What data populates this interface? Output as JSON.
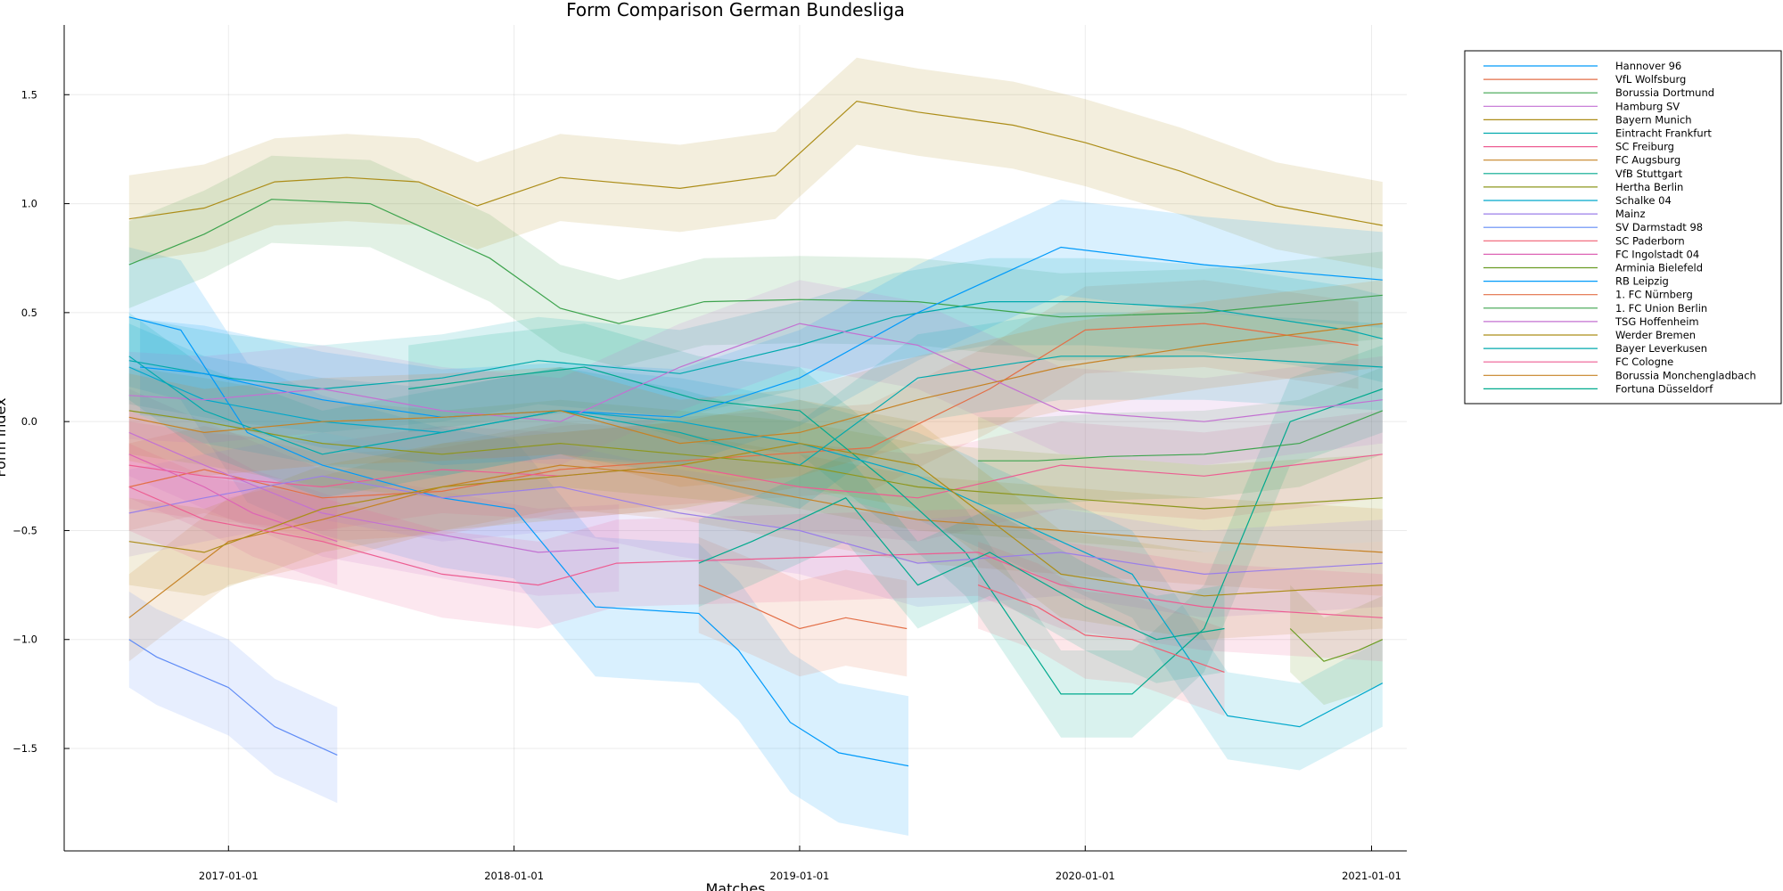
{
  "chart_data": {
    "type": "line",
    "title": "Form Comparison German Bundesliga",
    "xlabel": "Matches",
    "ylabel": "Form index",
    "x_ticks": [
      "2017-01-01",
      "2018-01-01",
      "2019-01-01",
      "2020-01-01",
      "2021-01-01"
    ],
    "y_ticks": [
      -1.5,
      -1.0,
      -0.5,
      0.0,
      0.5,
      1.0,
      1.5
    ],
    "y_tick_labels": [
      "−1.5",
      "−1.0",
      "−0.5",
      "0.0",
      "0.5",
      "1.0",
      "1.5"
    ],
    "xlim": [
      "2016-06-05",
      "2021-02-15"
    ],
    "ylim": [
      -1.97,
      1.82
    ],
    "grid": true,
    "legend_position": "outer-top-right",
    "band": "shaded uncertainty band around each series line",
    "series": [
      {
        "name": "Hannover 96",
        "color": "#009AFA",
        "band": 0.32,
        "x": [
          "2016-08-27",
          "2016-11-01",
          "2017-01-25",
          "2017-05-01",
          "2017-10-01",
          "2018-01-01",
          "2018-04-15",
          "2018-08-25",
          "2018-10-15",
          "2018-12-20",
          "2019-02-20",
          "2019-05-20"
        ],
        "y": [
          0.48,
          0.42,
          -0.05,
          -0.2,
          -0.35,
          -0.4,
          -0.85,
          -0.88,
          -1.05,
          -1.38,
          -1.52,
          -1.58
        ]
      },
      {
        "name": "VfL Wolfsburg",
        "color": "#E36F47",
        "band": 0.2,
        "x": [
          "2016-08-27",
          "2016-12-01",
          "2017-05-01",
          "2017-10-01",
          "2018-03-01",
          "2018-08-01",
          "2018-12-01",
          "2019-04-01",
          "2019-09-01",
          "2020-01-01",
          "2020-06-01",
          "2020-12-15"
        ],
        "y": [
          -0.3,
          -0.22,
          -0.35,
          -0.32,
          -0.22,
          -0.18,
          -0.15,
          -0.12,
          0.15,
          0.42,
          0.45,
          0.35
        ]
      },
      {
        "name": "Borussia Dortmund",
        "color": "#3EA44E",
        "band": 0.2,
        "x": [
          "2016-08-27",
          "2016-12-01",
          "2017-02-25",
          "2017-07-01",
          "2017-12-01",
          "2018-03-01",
          "2018-05-15",
          "2018-09-01",
          "2019-01-01",
          "2019-06-01",
          "2019-12-01",
          "2020-06-01",
          "2021-01-15"
        ],
        "y": [
          0.72,
          0.86,
          1.02,
          1.0,
          0.75,
          0.52,
          0.45,
          0.55,
          0.56,
          0.55,
          0.48,
          0.5,
          0.58
        ]
      },
      {
        "name": "Hamburg SV",
        "color": "#C371D2",
        "band": 0.2,
        "x": [
          "2016-08-27",
          "2016-12-01",
          "2017-05-01",
          "2017-10-01",
          "2018-02-01",
          "2018-05-15"
        ],
        "y": [
          -0.05,
          -0.2,
          -0.42,
          -0.52,
          -0.6,
          -0.58
        ]
      },
      {
        "name": "Bayern Munich",
        "color": "#AC8D18",
        "band": 0.2,
        "x": [
          "2016-08-27",
          "2016-12-01",
          "2017-03-01",
          "2017-06-01",
          "2017-09-01",
          "2017-11-15",
          "2018-03-01",
          "2018-08-01",
          "2018-12-01",
          "2019-03-15",
          "2019-06-01",
          "2019-10-01",
          "2020-01-01",
          "2020-05-01",
          "2020-09-01",
          "2021-01-15"
        ],
        "y": [
          0.93,
          0.98,
          1.1,
          1.12,
          1.1,
          0.99,
          1.12,
          1.07,
          1.13,
          1.47,
          1.42,
          1.36,
          1.28,
          1.15,
          0.99,
          0.9
        ]
      },
      {
        "name": "Eintracht Frankfurt",
        "color": "#00A9AD",
        "band": 0.2,
        "x": [
          "2016-08-27",
          "2017-01-01",
          "2017-05-01",
          "2017-10-01",
          "2018-02-01",
          "2018-08-01",
          "2019-01-01",
          "2019-05-01",
          "2019-09-01",
          "2020-01-01",
          "2020-06-01",
          "2020-12-01",
          "2021-01-15"
        ],
        "y": [
          0.28,
          0.2,
          0.15,
          0.2,
          0.28,
          0.22,
          0.35,
          0.48,
          0.55,
          0.55,
          0.52,
          0.42,
          0.38
        ]
      },
      {
        "name": "SC Freiburg",
        "color": "#ED5D92",
        "band": 0.2,
        "x": [
          "2016-08-27",
          "2016-12-01",
          "2017-05-01",
          "2017-10-01",
          "2018-03-01",
          "2018-08-01",
          "2019-01-01",
          "2019-06-01",
          "2019-12-01",
          "2020-06-01",
          "2021-01-15"
        ],
        "y": [
          -0.2,
          -0.25,
          -0.3,
          -0.22,
          -0.25,
          -0.2,
          -0.3,
          -0.35,
          -0.2,
          -0.25,
          -0.15
        ]
      },
      {
        "name": "FC Augsburg",
        "color": "#C68225",
        "band": 0.2,
        "x": [
          "2016-08-27",
          "2017-01-01",
          "2017-05-01",
          "2017-10-01",
          "2018-03-01",
          "2018-08-01",
          "2019-01-01",
          "2019-06-01",
          "2019-12-01",
          "2020-06-01",
          "2021-01-15"
        ],
        "y": [
          -0.9,
          -0.55,
          -0.45,
          -0.3,
          -0.2,
          -0.25,
          -0.35,
          -0.45,
          -0.5,
          -0.55,
          -0.6
        ]
      },
      {
        "name": "VfB Stuttgart",
        "color": "#00A98D",
        "band": 0.2,
        "x": [
          "2017-08-19",
          "2017-12-01",
          "2018-04-01",
          "2018-08-25",
          "2019-01-01",
          "2019-05-01",
          "2019-08-01",
          "2019-12-01",
          "2020-03-01",
          "2020-06-01",
          "2020-09-19",
          "2021-01-15"
        ],
        "y": [
          0.15,
          0.2,
          0.25,
          0.1,
          0.05,
          -0.3,
          -0.6,
          -1.25,
          -1.25,
          -0.95,
          0.0,
          0.15
        ]
      },
      {
        "name": "Hertha Berlin",
        "color": "#8E971E",
        "band": 0.2,
        "x": [
          "2016-08-27",
          "2016-12-01",
          "2017-05-01",
          "2017-10-01",
          "2018-03-01",
          "2018-08-01",
          "2019-01-01",
          "2019-06-01",
          "2019-12-01",
          "2020-06-01",
          "2021-01-15"
        ],
        "y": [
          0.05,
          0.0,
          -0.1,
          -0.15,
          -0.1,
          -0.15,
          -0.2,
          -0.3,
          -0.35,
          -0.4,
          -0.35
        ]
      },
      {
        "name": "Schalke 04",
        "color": "#00A8CB",
        "band": 0.2,
        "x": [
          "2016-08-27",
          "2016-12-01",
          "2017-05-01",
          "2017-10-01",
          "2018-03-01",
          "2018-08-01",
          "2019-01-01",
          "2019-06-01",
          "2019-12-01",
          "2020-03-01",
          "2020-07-01",
          "2020-10-01",
          "2021-01-15"
        ],
        "y": [
          0.25,
          0.1,
          0.0,
          -0.05,
          0.05,
          0.0,
          -0.1,
          -0.25,
          -0.55,
          -0.7,
          -1.35,
          -1.4,
          -1.2
        ]
      },
      {
        "name": "Mainz",
        "color": "#9B7FE8",
        "band": 0.2,
        "x": [
          "2016-08-27",
          "2016-12-01",
          "2017-05-01",
          "2017-10-01",
          "2018-03-01",
          "2018-08-01",
          "2019-01-01",
          "2019-06-01",
          "2019-12-01",
          "2020-06-01",
          "2021-01-15"
        ],
        "y": [
          -0.42,
          -0.35,
          -0.25,
          -0.35,
          -0.3,
          -0.42,
          -0.5,
          -0.65,
          -0.6,
          -0.7,
          -0.65
        ]
      },
      {
        "name": "SV Darmstadt 98",
        "color": "#608CF6",
        "band": 0.22,
        "x": [
          "2016-08-27",
          "2016-10-01",
          "2017-01-01",
          "2017-03-01",
          "2017-05-20"
        ],
        "y": [
          -1.0,
          -1.08,
          -1.22,
          -1.4,
          -1.53
        ]
      },
      {
        "name": "SC Paderborn",
        "color": "#F05F73",
        "band": 0.2,
        "x": [
          "2019-08-17",
          "2019-11-01",
          "2020-01-01",
          "2020-03-01",
          "2020-06-27"
        ],
        "y": [
          -0.75,
          -0.85,
          -0.98,
          -1.0,
          -1.15
        ]
      },
      {
        "name": "FC Ingolstadt 04",
        "color": "#DD64B5",
        "band": 0.2,
        "x": [
          "2016-08-27",
          "2016-12-01",
          "2017-02-01",
          "2017-05-20"
        ],
        "y": [
          -0.15,
          -0.3,
          -0.42,
          -0.55
        ]
      },
      {
        "name": "Arminia Bielefeld",
        "color": "#6B9D24",
        "band": 0.2,
        "x": [
          "2020-09-19",
          "2020-11-01",
          "2020-12-15",
          "2021-01-15"
        ],
        "y": [
          -0.95,
          -1.1,
          -1.05,
          -1.0
        ]
      },
      {
        "name": "RB Leipzig",
        "color": "#009AFA",
        "band": 0.22,
        "x": [
          "2016-09-10",
          "2016-12-01",
          "2017-05-01",
          "2017-10-01",
          "2018-03-01",
          "2018-08-01",
          "2019-01-01",
          "2019-06-01",
          "2019-12-01",
          "2020-06-01",
          "2021-01-15"
        ],
        "y": [
          0.25,
          0.22,
          0.1,
          0.02,
          0.05,
          0.02,
          0.2,
          0.5,
          0.8,
          0.72,
          0.65
        ]
      },
      {
        "name": "1. FC Nürnberg",
        "color": "#E36F47",
        "band": 0.22,
        "x": [
          "2018-08-25",
          "2018-11-01",
          "2019-01-01",
          "2019-03-01",
          "2019-05-18"
        ],
        "y": [
          -0.75,
          -0.85,
          -0.95,
          -0.9,
          -0.95
        ]
      },
      {
        "name": "1. FC Union Berlin",
        "color": "#3EA44E",
        "band": 0.2,
        "x": [
          "2019-08-17",
          "2019-11-01",
          "2020-02-01",
          "2020-06-01",
          "2020-10-01",
          "2021-01-15"
        ],
        "y": [
          -0.18,
          -0.18,
          -0.16,
          -0.15,
          -0.1,
          0.05
        ]
      },
      {
        "name": "TSG Hoffenheim",
        "color": "#C371D2",
        "band": 0.2,
        "x": [
          "2016-08-27",
          "2016-12-01",
          "2017-05-01",
          "2017-10-01",
          "2018-03-01",
          "2018-08-01",
          "2019-01-01",
          "2019-06-01",
          "2019-12-01",
          "2020-06-01",
          "2021-01-15"
        ],
        "y": [
          0.12,
          0.1,
          0.15,
          0.05,
          0.0,
          0.25,
          0.45,
          0.35,
          0.05,
          0.0,
          0.1
        ]
      },
      {
        "name": "Werder Bremen",
        "color": "#AC8D18",
        "band": 0.2,
        "x": [
          "2016-08-27",
          "2016-12-01",
          "2017-05-01",
          "2017-10-01",
          "2018-03-01",
          "2018-08-01",
          "2019-01-01",
          "2019-06-01",
          "2019-12-01",
          "2020-06-01",
          "2021-01-15"
        ],
        "y": [
          -0.55,
          -0.6,
          -0.4,
          -0.3,
          -0.25,
          -0.2,
          -0.1,
          -0.2,
          -0.7,
          -0.8,
          -0.75
        ]
      },
      {
        "name": "Bayer Leverkusen",
        "color": "#00A9AD",
        "band": 0.2,
        "x": [
          "2016-08-27",
          "2016-12-01",
          "2017-05-01",
          "2017-10-01",
          "2018-03-01",
          "2018-08-01",
          "2019-01-01",
          "2019-06-01",
          "2019-12-01",
          "2020-06-01",
          "2021-01-15"
        ],
        "y": [
          0.3,
          0.05,
          -0.15,
          -0.05,
          0.05,
          -0.05,
          -0.2,
          0.2,
          0.3,
          0.3,
          0.25
        ]
      },
      {
        "name": "FC Cologne",
        "color": "#ED5D92",
        "band": 0.2,
        "x": [
          "2016-08-27",
          "2016-12-01",
          "2017-05-01",
          "2017-10-01",
          "2018-02-01",
          "2018-05-12",
          "2019-08-17",
          "2019-12-01",
          "2020-06-01",
          "2021-01-15"
        ],
        "y": [
          -0.3,
          -0.45,
          -0.55,
          -0.7,
          -0.75,
          -0.65,
          -0.6,
          -0.75,
          -0.85,
          -0.9
        ]
      },
      {
        "name": "Borussia Monchengladbach",
        "color": "#C68225",
        "band": 0.2,
        "x": [
          "2016-08-27",
          "2016-12-01",
          "2017-05-01",
          "2017-10-01",
          "2018-03-01",
          "2018-08-01",
          "2019-01-01",
          "2019-06-01",
          "2019-12-01",
          "2020-06-01",
          "2021-01-15"
        ],
        "y": [
          0.02,
          -0.05,
          0.0,
          0.02,
          0.05,
          -0.1,
          -0.05,
          0.1,
          0.25,
          0.35,
          0.45
        ]
      },
      {
        "name": "Fortuna Düsseldorf",
        "color": "#00A98D",
        "band": 0.2,
        "x": [
          "2018-08-25",
          "2018-11-01",
          "2019-01-01",
          "2019-03-01",
          "2019-06-01",
          "2019-09-01",
          "2020-01-01",
          "2020-04-01",
          "2020-06-27"
        ],
        "y": [
          -0.65,
          -0.55,
          -0.45,
          -0.35,
          -0.75,
          -0.6,
          -0.85,
          -1.0,
          -0.95
        ]
      }
    ]
  }
}
